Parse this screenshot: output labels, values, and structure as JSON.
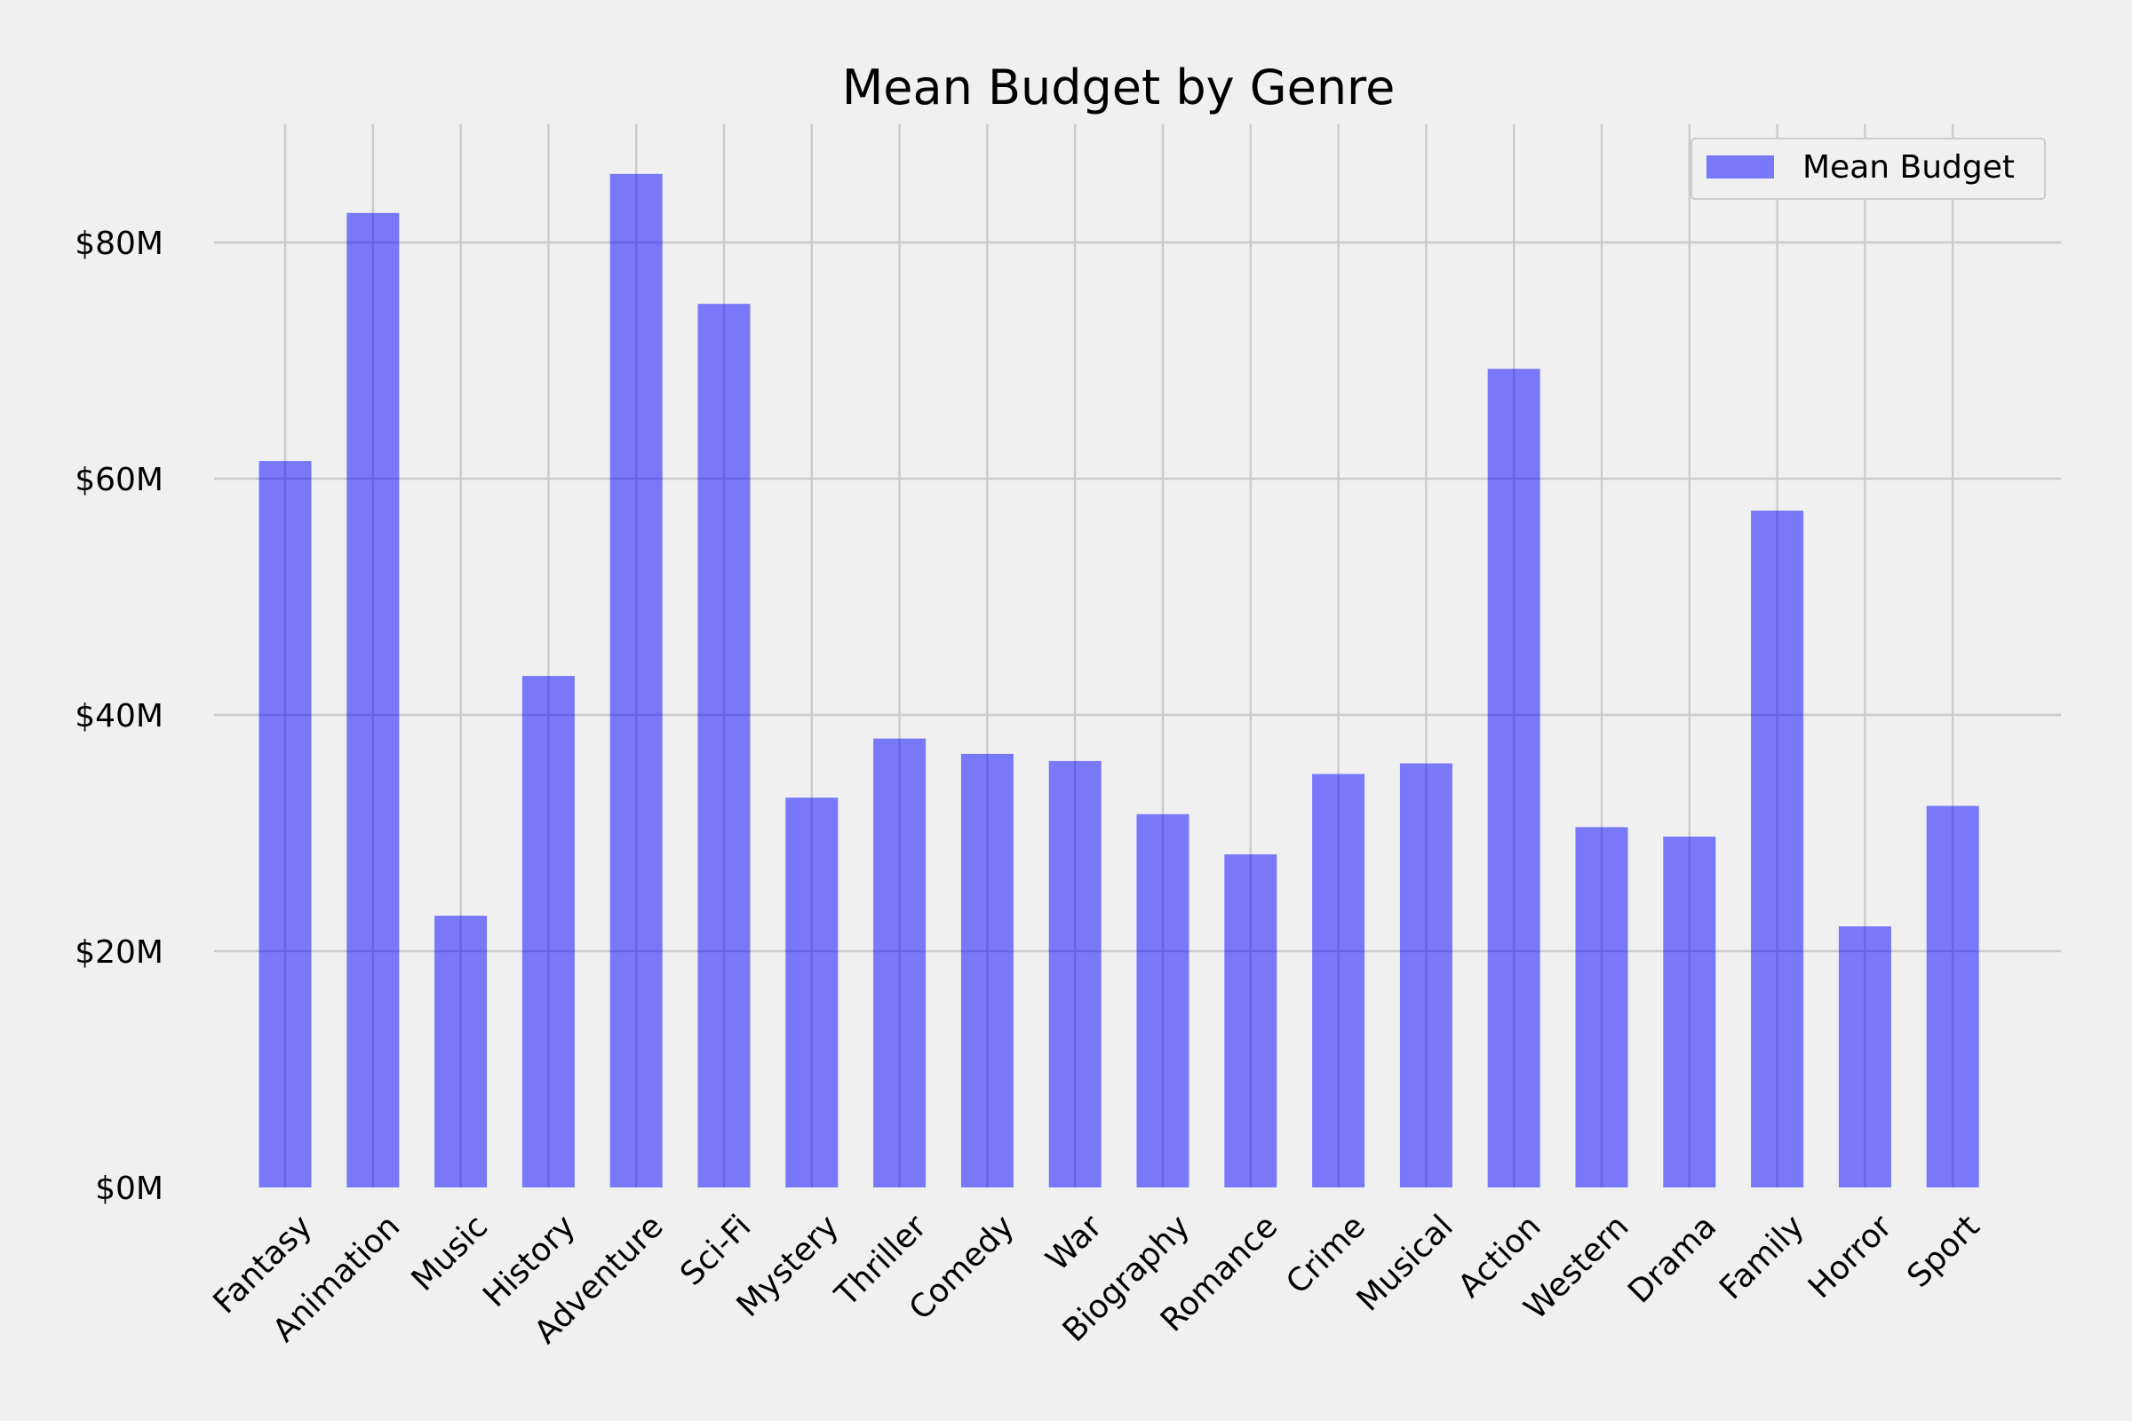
{
  "chart_data": {
    "type": "bar",
    "title": "Mean Budget by Genre",
    "xlabel": "",
    "ylabel": "",
    "categories": [
      "Fantasy",
      "Animation",
      "Music",
      "History",
      "Adventure",
      "Sci-Fi",
      "Mystery",
      "Thriller",
      "Comedy",
      "War",
      "Biography",
      "Romance",
      "Crime",
      "Musical",
      "Action",
      "Western",
      "Drama",
      "Family",
      "Horror",
      "Sport"
    ],
    "series": [
      {
        "name": "Mean Budget",
        "values": [
          61.5,
          82.5,
          23.0,
          43.3,
          85.8,
          74.8,
          33.0,
          38.0,
          36.7,
          36.1,
          31.6,
          28.2,
          35.0,
          35.9,
          69.3,
          30.5,
          29.7,
          57.3,
          22.1,
          32.3
        ],
        "color": "#0000ff"
      }
    ],
    "ylim": [
      0,
      90
    ],
    "yticks": [
      0,
      20,
      40,
      60,
      80
    ],
    "ytick_labels": [
      "$0M",
      "$20M",
      "$40M",
      "$60M",
      "$80M"
    ],
    "grid": true,
    "legend": {
      "position": "top-right",
      "label": "Mean Budget"
    },
    "background": "#f0f0f0",
    "grid_color": "#cbcbcb"
  }
}
